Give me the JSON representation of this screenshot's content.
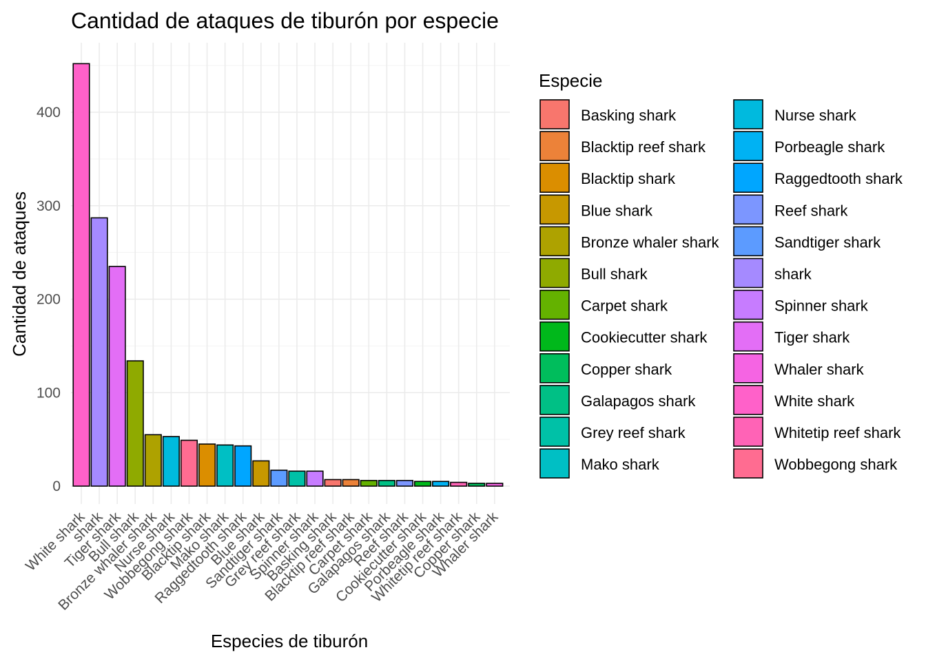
{
  "chart_data": {
    "type": "bar",
    "title": "Cantidad de ataques de tiburón por especie",
    "xlabel": "Especies de tiburón",
    "ylabel": "Cantidad de ataques",
    "ylim": [
      0,
      460
    ],
    "y_ticks": [
      0,
      100,
      200,
      300,
      400
    ],
    "grid": true,
    "legend_position": "right",
    "legend_title": "Especie",
    "categories": [
      "White shark",
      "shark",
      "Tiger shark",
      "Bull shark",
      "Bronze whaler shark",
      "Nurse shark",
      "Wobbegong shark",
      "Blacktip shark",
      "Mako shark",
      "Raggedtooth shark",
      "Blue shark",
      "Sandtiger shark",
      "Grey reef shark",
      "Spinner shark",
      "Basking shark",
      "Blacktip reef shark",
      "Carpet shark",
      "Galapagos shark",
      "Reef shark",
      "Cookiecutter shark",
      "Porbeagle shark",
      "Whitetip reef shark",
      "Copper shark",
      "Whaler shark"
    ],
    "values": [
      452,
      287,
      235,
      134,
      55,
      53,
      49,
      45,
      44,
      43,
      27,
      17,
      16,
      16,
      7,
      7,
      6,
      6,
      6,
      5,
      5,
      4,
      3,
      3
    ],
    "legend": [
      {
        "name": "Basking shark",
        "color": "#F8766D"
      },
      {
        "name": "Blacktip reef shark",
        "color": "#EC8239"
      },
      {
        "name": "Blacktip shark",
        "color": "#DB8E00"
      },
      {
        "name": "Blue shark",
        "color": "#C79800"
      },
      {
        "name": "Bronze whaler shark",
        "color": "#AEA200"
      },
      {
        "name": "Bull shark",
        "color": "#8FAA00"
      },
      {
        "name": "Carpet shark",
        "color": "#64B200"
      },
      {
        "name": "Cookiecutter shark",
        "color": "#00B81B"
      },
      {
        "name": "Copper shark",
        "color": "#00BD5C"
      },
      {
        "name": "Galapagos shark",
        "color": "#00C085"
      },
      {
        "name": "Grey reef shark",
        "color": "#00C1A7"
      },
      {
        "name": "Mako shark",
        "color": "#00BFC4"
      },
      {
        "name": "Nurse shark",
        "color": "#00BADE"
      },
      {
        "name": "Porbeagle shark",
        "color": "#00B2F3"
      },
      {
        "name": "Raggedtooth shark",
        "color": "#00A6FF"
      },
      {
        "name": "Reef shark",
        "color": "#7C96FF"
      },
      {
        "name": "Sandtiger shark",
        "color": "#5C9BFF"
      },
      {
        "name": "shark",
        "color": "#A58AFF"
      },
      {
        "name": "Spinner shark",
        "color": "#C77CFF"
      },
      {
        "name": "Tiger shark",
        "color": "#E36EF6"
      },
      {
        "name": "Whaler shark",
        "color": "#F564E3"
      },
      {
        "name": "White shark",
        "color": "#FF61C9"
      },
      {
        "name": "Whitetip reef shark",
        "color": "#FF63B6"
      },
      {
        "name": "Wobbegong shark",
        "color": "#FF6C91"
      }
    ]
  }
}
